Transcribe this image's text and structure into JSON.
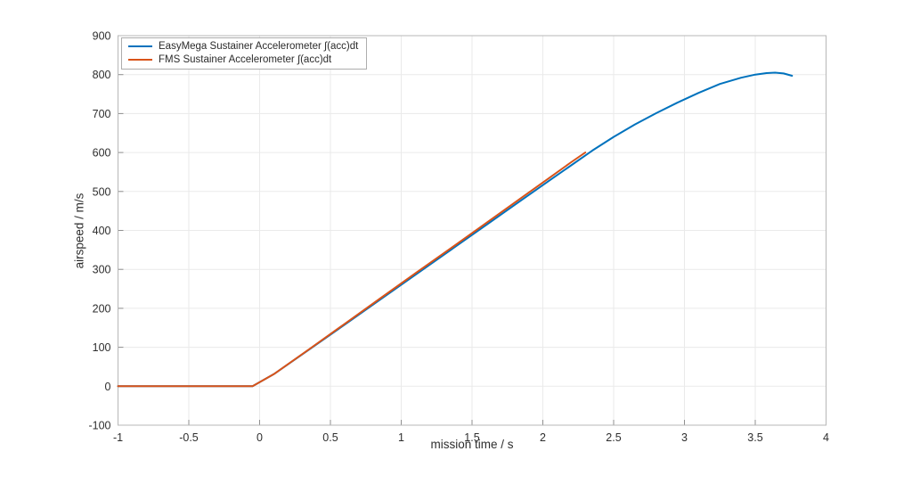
{
  "figure": {
    "background": "#ffffff"
  },
  "chart_data": {
    "type": "line",
    "title": "",
    "xlabel": "mission time / s",
    "ylabel": "airspeed / m/s",
    "xlim": [
      -1,
      4
    ],
    "ylim": [
      -100,
      900
    ],
    "xtick_labels": [
      "-1",
      "-0.5",
      "0",
      "0.5",
      "1",
      "1.5",
      "2",
      "2.5",
      "3",
      "3.5",
      "4"
    ],
    "xtick_values": [
      -1,
      -0.5,
      0,
      0.5,
      1,
      1.5,
      2,
      2.5,
      3,
      3.5,
      4
    ],
    "ytick_labels": [
      "-100",
      "0",
      "100",
      "200",
      "300",
      "400",
      "500",
      "600",
      "700",
      "800",
      "900"
    ],
    "ytick_values": [
      -100,
      0,
      100,
      200,
      300,
      400,
      500,
      600,
      700,
      800,
      900
    ],
    "grid": true,
    "legend_position": "top-left",
    "colors": {
      "frame": "#b7b7b7",
      "grid": "#eaeaea",
      "tick": "#8f8f8f",
      "text": "#2e2e2e"
    },
    "series": [
      {
        "name": "EasyMega Sustainer Accelerometer ∫(acc)dt",
        "color": "#0072BD",
        "points": [
          [
            -1,
            0
          ],
          [
            -0.6,
            0
          ],
          [
            -0.3,
            0
          ],
          [
            -0.05,
            0
          ],
          [
            0.1,
            31
          ],
          [
            0.35,
            94
          ],
          [
            0.6,
            158
          ],
          [
            0.85,
            222
          ],
          [
            1.1,
            286
          ],
          [
            1.35,
            350
          ],
          [
            1.6,
            414
          ],
          [
            1.85,
            478
          ],
          [
            2.05,
            529
          ],
          [
            2.2,
            567
          ],
          [
            2.35,
            605
          ],
          [
            2.5,
            640
          ],
          [
            2.65,
            672
          ],
          [
            2.8,
            701
          ],
          [
            2.95,
            728
          ],
          [
            3.1,
            753
          ],
          [
            3.25,
            776
          ],
          [
            3.4,
            792
          ],
          [
            3.5,
            800
          ],
          [
            3.58,
            804
          ],
          [
            3.64,
            805
          ],
          [
            3.7,
            803
          ],
          [
            3.76,
            797
          ]
        ]
      },
      {
        "name": "FMS Sustainer Accelerometer ∫(acc)dt",
        "color": "#D95319",
        "points": [
          [
            -1,
            0
          ],
          [
            -0.6,
            0
          ],
          [
            -0.3,
            0
          ],
          [
            -0.05,
            0
          ],
          [
            0.1,
            31
          ],
          [
            0.35,
            95
          ],
          [
            0.6,
            160
          ],
          [
            0.85,
            225
          ],
          [
            1.1,
            290
          ],
          [
            1.35,
            354
          ],
          [
            1.6,
            419
          ],
          [
            1.85,
            484
          ],
          [
            2.05,
            536
          ],
          [
            2.2,
            575
          ],
          [
            2.3,
            600
          ]
        ]
      }
    ]
  }
}
